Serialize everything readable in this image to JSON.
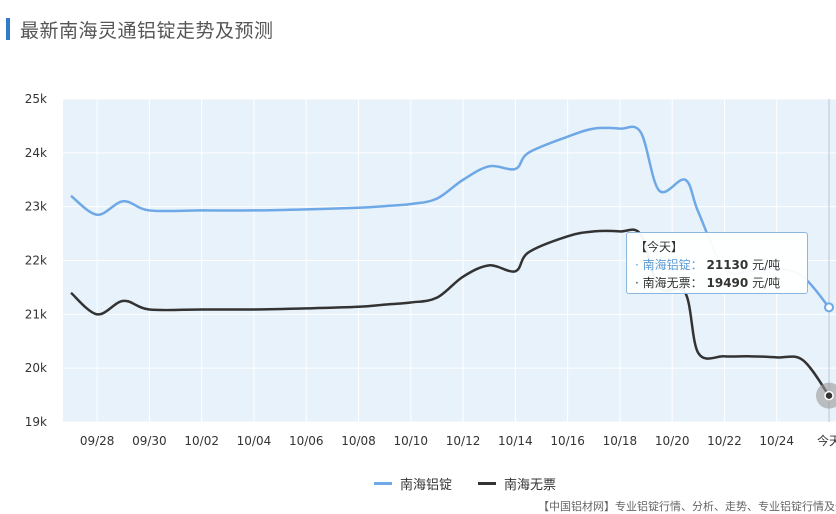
{
  "page": {
    "title": "最新南海灵通铝锭走势及预测"
  },
  "tooltip": {
    "header": "【今天】",
    "rows": [
      {
        "name": "南海铝锭",
        "value": "21130",
        "unit": "元/吨"
      },
      {
        "name": "南海无票",
        "value": "19490",
        "unit": "元/吨"
      }
    ]
  },
  "footer": {
    "text": "【中国铝材网】专业铝锭行情、分析、走势、专业铝锭行情及价"
  },
  "chart_data": {
    "type": "line",
    "title": "最新南海灵通铝锭走势及预测",
    "xlabel": "",
    "ylabel": "",
    "ylim": [
      19000,
      25000
    ],
    "yticks": [
      19000,
      20000,
      21000,
      22000,
      23000,
      24000,
      25000
    ],
    "ytick_labels": [
      "19k",
      "20k",
      "21k",
      "22k",
      "23k",
      "24k",
      "25k"
    ],
    "xtick_labels": [
      {
        "x": 1,
        "label": "09/28"
      },
      {
        "x": 3,
        "label": "09/30"
      },
      {
        "x": 5,
        "label": "10/02"
      },
      {
        "x": 7,
        "label": "10/04"
      },
      {
        "x": 9,
        "label": "10/06"
      },
      {
        "x": 11,
        "label": "10/08"
      },
      {
        "x": 13,
        "label": "10/10"
      },
      {
        "x": 15,
        "label": "10/12"
      },
      {
        "x": 17,
        "label": "10/14"
      },
      {
        "x": 19,
        "label": "10/16"
      },
      {
        "x": 21,
        "label": "10/18"
      },
      {
        "x": 23,
        "label": "10/20"
      },
      {
        "x": 25,
        "label": "10/22"
      },
      {
        "x": 27,
        "label": "10/24"
      },
      {
        "x": 29,
        "label": "今天"
      }
    ],
    "xlim": [
      0,
      29
    ],
    "grid": true,
    "legend_position": "bottom",
    "series": [
      {
        "name": "南海铝锭",
        "color": "#6fa8e6",
        "points": [
          [
            0,
            23200
          ],
          [
            1,
            22850
          ],
          [
            2,
            23100
          ],
          [
            3,
            22930
          ],
          [
            5,
            22930
          ],
          [
            7,
            22930
          ],
          [
            9,
            22950
          ],
          [
            11,
            22980
          ],
          [
            12,
            23010
          ],
          [
            13,
            23050
          ],
          [
            14,
            23150
          ],
          [
            15,
            23500
          ],
          [
            16,
            23750
          ],
          [
            17,
            23700
          ],
          [
            17.5,
            24000
          ],
          [
            19,
            24300
          ],
          [
            20,
            24450
          ],
          [
            21,
            24450
          ],
          [
            21.8,
            24380
          ],
          [
            22.5,
            23300
          ],
          [
            23.5,
            23500
          ],
          [
            24,
            22900
          ],
          [
            25,
            21850
          ],
          [
            26,
            21800
          ],
          [
            27,
            21850
          ],
          [
            28,
            21700
          ],
          [
            29,
            21130
          ]
        ]
      },
      {
        "name": "南海无票",
        "color": "#333333",
        "points": [
          [
            0,
            21400
          ],
          [
            1,
            21000
          ],
          [
            2,
            21250
          ],
          [
            3,
            21090
          ],
          [
            5,
            21090
          ],
          [
            7,
            21090
          ],
          [
            9,
            21110
          ],
          [
            11,
            21140
          ],
          [
            12,
            21180
          ],
          [
            13,
            21220
          ],
          [
            14,
            21310
          ],
          [
            15,
            21700
          ],
          [
            16,
            21910
          ],
          [
            17,
            21800
          ],
          [
            17.5,
            22150
          ],
          [
            19,
            22450
          ],
          [
            20,
            22540
          ],
          [
            21,
            22540
          ],
          [
            21.8,
            22480
          ],
          [
            22.5,
            21500
          ],
          [
            23.5,
            21400
          ],
          [
            24,
            20280
          ],
          [
            25,
            20220
          ],
          [
            26,
            20220
          ],
          [
            27,
            20200
          ],
          [
            28,
            20150
          ],
          [
            29,
            19490
          ]
        ]
      }
    ],
    "annotation": "今天"
  }
}
